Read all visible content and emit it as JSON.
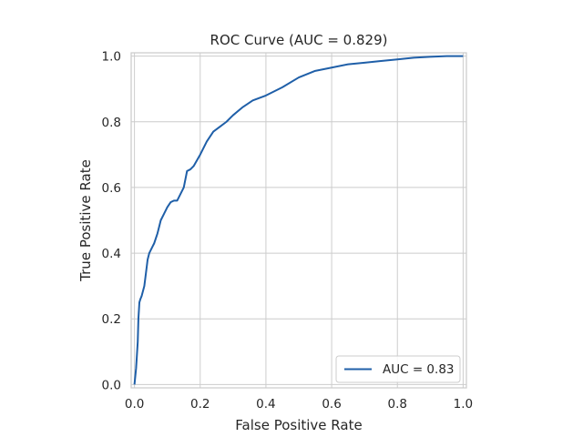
{
  "chart_data": {
    "type": "line",
    "title": "ROC Curve (AUC = 0.829)",
    "xlabel": "False Positive Rate",
    "ylabel": "True Positive Rate",
    "xlim": [
      -0.01,
      1.01
    ],
    "ylim": [
      -0.01,
      1.01
    ],
    "x_ticks": [
      "0.0",
      "0.2",
      "0.4",
      "0.6",
      "0.8",
      "1.0"
    ],
    "y_ticks": [
      "0.0",
      "0.2",
      "0.4",
      "0.6",
      "0.8",
      "1.0"
    ],
    "grid": true,
    "legend_position": "lower-right",
    "colors": {
      "series": "#1f5fa8",
      "grid": "#cccccc"
    },
    "series": [
      {
        "name": "AUC = 0.83",
        "x": [
          0.0,
          0.005,
          0.01,
          0.012,
          0.015,
          0.018,
          0.022,
          0.03,
          0.035,
          0.04,
          0.045,
          0.05,
          0.055,
          0.06,
          0.07,
          0.075,
          0.08,
          0.09,
          0.1,
          0.11,
          0.12,
          0.13,
          0.15,
          0.16,
          0.17,
          0.18,
          0.2,
          0.22,
          0.24,
          0.26,
          0.28,
          0.3,
          0.33,
          0.36,
          0.4,
          0.45,
          0.5,
          0.55,
          0.6,
          0.65,
          0.7,
          0.75,
          0.8,
          0.85,
          0.9,
          0.95,
          1.0
        ],
        "y": [
          0.0,
          0.05,
          0.13,
          0.2,
          0.25,
          0.26,
          0.27,
          0.3,
          0.34,
          0.38,
          0.4,
          0.41,
          0.42,
          0.43,
          0.46,
          0.48,
          0.5,
          0.52,
          0.54,
          0.555,
          0.56,
          0.56,
          0.6,
          0.65,
          0.655,
          0.665,
          0.7,
          0.74,
          0.77,
          0.785,
          0.8,
          0.82,
          0.845,
          0.865,
          0.88,
          0.905,
          0.935,
          0.955,
          0.965,
          0.975,
          0.98,
          0.985,
          0.99,
          0.995,
          0.998,
          1.0,
          1.0
        ]
      }
    ]
  }
}
